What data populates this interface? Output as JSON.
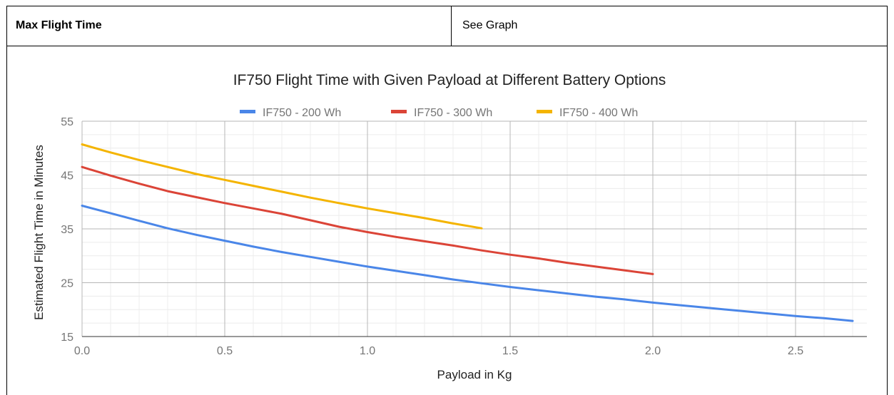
{
  "table": {
    "row_label": "Max Flight Time",
    "row_value": "See Graph"
  },
  "chart_data": {
    "type": "line",
    "title": "IF750 Flight Time with Given Payload at Different Battery Options",
    "xlabel": "Payload in Kg",
    "ylabel": "Estimated Flight Time in Minutes",
    "xlim": [
      0,
      2.75
    ],
    "ylim": [
      15,
      55
    ],
    "xticks": [
      0.0,
      0.5,
      1.0,
      1.5,
      2.0,
      2.5
    ],
    "xtick_labels": [
      "0.0",
      "0.5",
      "1.0",
      "1.5",
      "2.0",
      "2.5"
    ],
    "yticks": [
      15,
      25,
      35,
      45,
      55
    ],
    "ytick_labels": [
      "15",
      "25",
      "35",
      "45",
      "55"
    ],
    "grid": true,
    "legend_position": "top",
    "series": [
      {
        "name": "IF750 - 200 Wh",
        "color": "#4a86e8",
        "x": [
          0,
          0.1,
          0.2,
          0.3,
          0.4,
          0.5,
          0.6,
          0.7,
          0.8,
          0.9,
          1.0,
          1.1,
          1.2,
          1.3,
          1.4,
          1.5,
          1.6,
          1.7,
          1.8,
          1.9,
          2.0,
          2.1,
          2.2,
          2.3,
          2.4,
          2.5,
          2.6,
          2.7
        ],
        "y": [
          39.3,
          37.9,
          36.5,
          35.1,
          33.9,
          32.8,
          31.7,
          30.7,
          29.8,
          28.9,
          28.0,
          27.2,
          26.4,
          25.6,
          24.9,
          24.2,
          23.6,
          23.0,
          22.4,
          21.9,
          21.3,
          20.8,
          20.3,
          19.8,
          19.3,
          18.8,
          18.4,
          17.9
        ]
      },
      {
        "name": "IF750 - 300 Wh",
        "color": "#db4437",
        "x": [
          0,
          0.1,
          0.2,
          0.3,
          0.4,
          0.5,
          0.6,
          0.7,
          0.8,
          0.9,
          1.0,
          1.1,
          1.2,
          1.3,
          1.4,
          1.5,
          1.6,
          1.7,
          1.8,
          1.9,
          2.0
        ],
        "y": [
          46.5,
          44.9,
          43.4,
          42.0,
          40.9,
          39.8,
          38.8,
          37.8,
          36.6,
          35.4,
          34.4,
          33.5,
          32.7,
          31.9,
          31.0,
          30.2,
          29.5,
          28.7,
          28.0,
          27.3,
          26.6
        ]
      },
      {
        "name": "IF750 - 400 Wh",
        "color": "#f4b400",
        "x": [
          0,
          0.1,
          0.2,
          0.3,
          0.4,
          0.5,
          0.6,
          0.7,
          0.8,
          0.9,
          1.0,
          1.1,
          1.2,
          1.3,
          1.4
        ],
        "y": [
          50.7,
          49.2,
          47.8,
          46.5,
          45.2,
          44.1,
          43.0,
          41.9,
          40.8,
          39.8,
          38.8,
          37.9,
          37.0,
          36.0,
          35.1
        ]
      }
    ]
  }
}
